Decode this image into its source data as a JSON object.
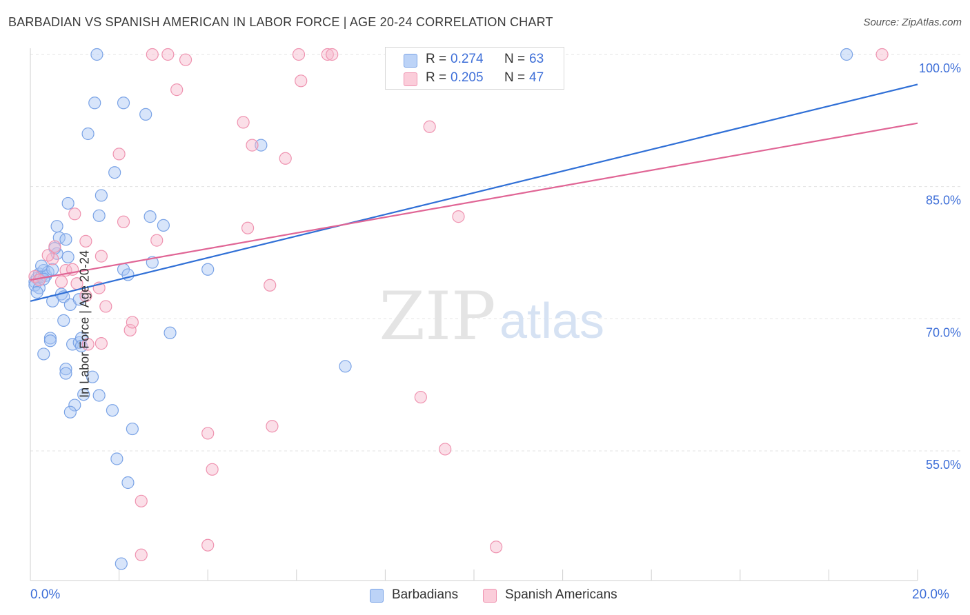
{
  "header": {
    "title": "BARBADIAN VS SPANISH AMERICAN IN LABOR FORCE | AGE 20-24 CORRELATION CHART",
    "source": "Source: ZipAtlas.com"
  },
  "watermark": {
    "zip": "ZIP",
    "atlas": "atlas"
  },
  "legend": {
    "rows": [
      {
        "r_label": "R =",
        "r_value": "0.274",
        "n_label": "N =",
        "n_value": "63",
        "color": "#a9c6f5"
      },
      {
        "r_label": "R =",
        "r_value": "0.205",
        "n_label": "N =",
        "n_value": "47",
        "color": "#f7b8cb"
      }
    ]
  },
  "bottom_legend": {
    "items": [
      {
        "label": "Barbadians",
        "color": "#a9c6f5"
      },
      {
        "label": "Spanish Americans",
        "color": "#f7b8cb"
      }
    ]
  },
  "axes": {
    "ylabel": "In Labor Force | Age 20-24",
    "x_min_label": "0.0%",
    "x_max_label": "20.0%",
    "y_tick_labels": [
      "100.0%",
      "85.0%",
      "70.0%",
      "55.0%"
    ]
  },
  "chart_data": {
    "type": "scatter",
    "title": "BARBADIAN VS SPANISH AMERICAN IN LABOR FORCE | AGE 20-24 CORRELATION CHART",
    "xlabel": "",
    "ylabel": "In Labor Force | Age 20-24",
    "xlim": [
      0,
      20
    ],
    "ylim": [
      41.5,
      101.5
    ],
    "y_ticks": [
      55,
      70,
      85,
      100
    ],
    "grid": true,
    "series": [
      {
        "name": "Barbadians",
        "color": "#a9c6f5",
        "stroke": "#7aa3e6",
        "trend": {
          "x": [
            0,
            20
          ],
          "y": [
            72.0,
            96.6
          ],
          "color": "#2f6fd6"
        },
        "points": [
          [
            0.1,
            74.2
          ],
          [
            0.15,
            74.6
          ],
          [
            0.2,
            75.1
          ],
          [
            0.25,
            74.8
          ],
          [
            0.3,
            75.5
          ],
          [
            0.1,
            73.8
          ],
          [
            0.2,
            73.5
          ],
          [
            0.35,
            74.9
          ],
          [
            0.4,
            75.3
          ],
          [
            0.5,
            75.6
          ],
          [
            0.25,
            76.0
          ],
          [
            0.6,
            77.4
          ],
          [
            0.55,
            78.0
          ],
          [
            0.65,
            79.2
          ],
          [
            0.6,
            80.5
          ],
          [
            0.8,
            79.0
          ],
          [
            0.85,
            77.0
          ],
          [
            0.5,
            72.0
          ],
          [
            0.7,
            72.8
          ],
          [
            0.75,
            72.5
          ],
          [
            0.9,
            71.6
          ],
          [
            1.1,
            72.2
          ],
          [
            0.75,
            69.8
          ],
          [
            0.45,
            67.8
          ],
          [
            0.45,
            67.5
          ],
          [
            0.3,
            66.0
          ],
          [
            0.95,
            67.1
          ],
          [
            1.1,
            67.3
          ],
          [
            1.15,
            67.8
          ],
          [
            1.15,
            66.9
          ],
          [
            0.8,
            64.3
          ],
          [
            0.8,
            63.8
          ],
          [
            1.4,
            63.4
          ],
          [
            1.2,
            61.4
          ],
          [
            1.55,
            61.3
          ],
          [
            1.0,
            60.2
          ],
          [
            0.9,
            59.4
          ],
          [
            1.85,
            59.6
          ],
          [
            2.3,
            57.5
          ],
          [
            1.95,
            54.1
          ],
          [
            2.2,
            51.4
          ],
          [
            2.05,
            42.2
          ],
          [
            1.5,
            100.0
          ],
          [
            1.45,
            94.5
          ],
          [
            2.1,
            94.5
          ],
          [
            2.6,
            93.2
          ],
          [
            1.3,
            91.0
          ],
          [
            1.9,
            86.6
          ],
          [
            1.6,
            84.0
          ],
          [
            0.85,
            83.1
          ],
          [
            1.55,
            81.7
          ],
          [
            2.7,
            81.6
          ],
          [
            3.0,
            80.6
          ],
          [
            2.1,
            75.6
          ],
          [
            2.2,
            75.0
          ],
          [
            2.75,
            76.4
          ],
          [
            3.15,
            68.4
          ],
          [
            4.0,
            75.6
          ],
          [
            5.2,
            89.7
          ],
          [
            7.1,
            64.6
          ],
          [
            18.4,
            100.0
          ],
          [
            0.15,
            73.0
          ],
          [
            0.3,
            74.5
          ]
        ]
      },
      {
        "name": "Spanish Americans",
        "color": "#f7b8cb",
        "stroke": "#ef93b0",
        "trend": {
          "x": [
            0,
            20
          ],
          "y": [
            74.4,
            92.2
          ],
          "color": "#e06595"
        },
        "points": [
          [
            0.1,
            74.8
          ],
          [
            0.2,
            74.4
          ],
          [
            0.5,
            76.8
          ],
          [
            0.4,
            77.2
          ],
          [
            0.55,
            78.2
          ],
          [
            0.8,
            75.5
          ],
          [
            0.95,
            75.6
          ],
          [
            0.7,
            74.2
          ],
          [
            1.05,
            74.0
          ],
          [
            1.25,
            72.6
          ],
          [
            1.55,
            73.5
          ],
          [
            1.7,
            71.4
          ],
          [
            1.3,
            67.1
          ],
          [
            1.6,
            67.2
          ],
          [
            2.25,
            68.7
          ],
          [
            2.3,
            69.6
          ],
          [
            1.0,
            81.9
          ],
          [
            1.25,
            78.8
          ],
          [
            1.6,
            77.1
          ],
          [
            2.1,
            81.0
          ],
          [
            2.85,
            78.9
          ],
          [
            2.0,
            88.7
          ],
          [
            3.3,
            96.0
          ],
          [
            3.5,
            99.4
          ],
          [
            2.75,
            100.0
          ],
          [
            3.1,
            100.0
          ],
          [
            4.8,
            92.3
          ],
          [
            5.0,
            89.7
          ],
          [
            4.9,
            80.3
          ],
          [
            5.4,
            73.8
          ],
          [
            5.75,
            88.2
          ],
          [
            6.05,
            100.0
          ],
          [
            6.1,
            97.0
          ],
          [
            6.7,
            100.0
          ],
          [
            6.8,
            100.0
          ],
          [
            9.0,
            91.8
          ],
          [
            9.65,
            81.6
          ],
          [
            8.8,
            61.1
          ],
          [
            9.35,
            55.2
          ],
          [
            5.45,
            57.8
          ],
          [
            4.0,
            57.0
          ],
          [
            4.1,
            52.9
          ],
          [
            2.5,
            49.3
          ],
          [
            2.5,
            43.2
          ],
          [
            4.0,
            44.3
          ],
          [
            10.5,
            44.1
          ],
          [
            19.2,
            100.0
          ]
        ]
      }
    ]
  }
}
